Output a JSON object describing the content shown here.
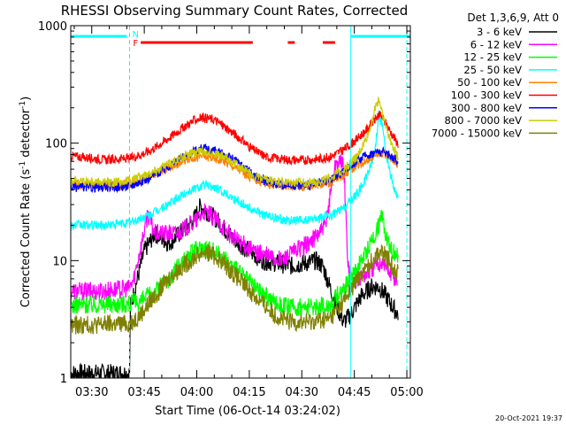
{
  "chart_data": {
    "type": "line",
    "title": "RHESSI Observing Summary Count Rates, Corrected",
    "xlabel": "Start Time (06-Oct-14 03:24:02)",
    "ylabel_main": "Corrected Count Rate (s",
    "ylabel_sup1": "-1",
    "ylabel_mid": " detector",
    "ylabel_sup2": "-1",
    "ylabel_end": ")",
    "yscale": "log",
    "ylim": [
      1,
      1000
    ],
    "xlim_minutes": [
      0,
      97
    ],
    "y_ticks": [
      {
        "value": 1,
        "label": "1"
      },
      {
        "value": 10,
        "label": "10"
      },
      {
        "value": 100,
        "label": "100"
      },
      {
        "value": 1000,
        "label": "1000"
      }
    ],
    "x_ticks": [
      {
        "minute": 6,
        "label": "03:30"
      },
      {
        "minute": 21,
        "label": "03:45"
      },
      {
        "minute": 36,
        "label": "04:00"
      },
      {
        "minute": 51,
        "label": "04:15"
      },
      {
        "minute": 66,
        "label": "04:30"
      },
      {
        "minute": 81,
        "label": "04:45"
      },
      {
        "minute": 96,
        "label": "05:00"
      }
    ],
    "legend_title": "Det 1,3,6,9, Att 0",
    "legend_placement": "right",
    "timestamp": "20-Oct-2021 19:37",
    "markers": {
      "night_label": "N",
      "flare_label": "F",
      "night_color": "#00ffff",
      "flare_color": "#ff0000",
      "night_intervals_min": [
        [
          0,
          16
        ],
        [
          80,
          97
        ]
      ],
      "flare_intervals_min": [
        [
          20,
          52
        ],
        [
          62,
          64
        ],
        [
          72,
          75.5
        ]
      ],
      "boundaries_min": [
        16.8,
        80,
        96
      ]
    },
    "series": [
      {
        "name": "3 - 6 keV",
        "color": "#000000",
        "points": [
          [
            0,
            1.1
          ],
          [
            16.8,
            1.1
          ],
          [
            17,
            4
          ],
          [
            21,
            12
          ],
          [
            24,
            17
          ],
          [
            28,
            14
          ],
          [
            32,
            18
          ],
          [
            35,
            22
          ],
          [
            37,
            29
          ],
          [
            39,
            26
          ],
          [
            42,
            22
          ],
          [
            45,
            17
          ],
          [
            48,
            14
          ],
          [
            51,
            12
          ],
          [
            55,
            10
          ],
          [
            59,
            9.5
          ],
          [
            63,
            9
          ],
          [
            67,
            9.5
          ],
          [
            70,
            10
          ],
          [
            72,
            9
          ],
          [
            74,
            6
          ],
          [
            76,
            4
          ],
          [
            78,
            3
          ],
          [
            80,
            3.5
          ],
          [
            83,
            5
          ],
          [
            86,
            6
          ],
          [
            88,
            6
          ],
          [
            90,
            5
          ],
          [
            92,
            4
          ],
          [
            93.5,
            3.5
          ]
        ]
      },
      {
        "name": "6 - 12 keV",
        "color": "#ff00ff",
        "points": [
          [
            0,
            5.5
          ],
          [
            8,
            5.5
          ],
          [
            16.8,
            5.8
          ],
          [
            18,
            7
          ],
          [
            20,
            13
          ],
          [
            22,
            25
          ],
          [
            24,
            17
          ],
          [
            27,
            17
          ],
          [
            30,
            17
          ],
          [
            33,
            19
          ],
          [
            36,
            22
          ],
          [
            38,
            26
          ],
          [
            40,
            24
          ],
          [
            43,
            20
          ],
          [
            46,
            16
          ],
          [
            49,
            14
          ],
          [
            52,
            12
          ],
          [
            56,
            11
          ],
          [
            60,
            10
          ],
          [
            64,
            12
          ],
          [
            68,
            14
          ],
          [
            70,
            16
          ],
          [
            73,
            20
          ],
          [
            74,
            35
          ],
          [
            75,
            55
          ],
          [
            76,
            70
          ],
          [
            78,
            65
          ],
          [
            79,
            12
          ],
          [
            80,
            6
          ],
          [
            82,
            7
          ],
          [
            85,
            8
          ],
          [
            87,
            9
          ],
          [
            89,
            10
          ],
          [
            91,
            8
          ],
          [
            93,
            7
          ],
          [
            93.5,
            6.5
          ]
        ]
      },
      {
        "name": "12 - 25 keV",
        "color": "#00ff00",
        "points": [
          [
            0,
            4.2
          ],
          [
            16.8,
            4.3
          ],
          [
            20,
            4.5
          ],
          [
            24,
            5.5
          ],
          [
            28,
            7
          ],
          [
            32,
            10
          ],
          [
            36,
            12.5
          ],
          [
            38,
            13
          ],
          [
            40,
            12.5
          ],
          [
            43,
            11
          ],
          [
            46,
            9
          ],
          [
            50,
            7
          ],
          [
            54,
            5.5
          ],
          [
            58,
            4.5
          ],
          [
            62,
            4
          ],
          [
            68,
            4
          ],
          [
            74,
            4.2
          ],
          [
            80,
            7
          ],
          [
            84,
            11
          ],
          [
            86,
            15
          ],
          [
            88,
            20
          ],
          [
            89,
            24
          ],
          [
            90,
            17
          ],
          [
            92,
            12
          ],
          [
            93.5,
            11
          ]
        ]
      },
      {
        "name": "25 - 50 keV",
        "color": "#00ffff",
        "points": [
          [
            0,
            20
          ],
          [
            10,
            20
          ],
          [
            16.8,
            21
          ],
          [
            22,
            24
          ],
          [
            26,
            28
          ],
          [
            30,
            33
          ],
          [
            33,
            38
          ],
          [
            36,
            42
          ],
          [
            38,
            44
          ],
          [
            41,
            42
          ],
          [
            44,
            38
          ],
          [
            48,
            32
          ],
          [
            52,
            27
          ],
          [
            56,
            24
          ],
          [
            62,
            22
          ],
          [
            68,
            22
          ],
          [
            74,
            24
          ],
          [
            78,
            28
          ],
          [
            82,
            38
          ],
          [
            85,
            55
          ],
          [
            87,
            90
          ],
          [
            88,
            180
          ],
          [
            89,
            140
          ],
          [
            90,
            80
          ],
          [
            92,
            45
          ],
          [
            93.5,
            33
          ]
        ]
      },
      {
        "name": "50 - 100 keV",
        "color": "#ff8000",
        "points": [
          [
            0,
            45
          ],
          [
            10,
            44
          ],
          [
            16.8,
            45
          ],
          [
            22,
            50
          ],
          [
            26,
            58
          ],
          [
            30,
            66
          ],
          [
            34,
            74
          ],
          [
            37,
            78
          ],
          [
            40,
            76
          ],
          [
            44,
            70
          ],
          [
            48,
            60
          ],
          [
            52,
            50
          ],
          [
            56,
            45
          ],
          [
            62,
            43
          ],
          [
            68,
            43
          ],
          [
            74,
            46
          ],
          [
            78,
            54
          ],
          [
            82,
            66
          ],
          [
            86,
            76
          ],
          [
            88,
            82
          ],
          [
            90,
            80
          ],
          [
            92,
            72
          ],
          [
            93.5,
            65
          ]
        ]
      },
      {
        "name": "100 - 300 keV",
        "color": "#ff0000",
        "points": [
          [
            0,
            78
          ],
          [
            10,
            72
          ],
          [
            16.8,
            74
          ],
          [
            22,
            84
          ],
          [
            26,
            100
          ],
          [
            30,
            122
          ],
          [
            33,
            142
          ],
          [
            36,
            160
          ],
          [
            38,
            166
          ],
          [
            41,
            158
          ],
          [
            44,
            138
          ],
          [
            48,
            112
          ],
          [
            52,
            88
          ],
          [
            56,
            76
          ],
          [
            62,
            72
          ],
          [
            68,
            72
          ],
          [
            74,
            76
          ],
          [
            78,
            88
          ],
          [
            82,
            110
          ],
          [
            85,
            135
          ],
          [
            87,
            160
          ],
          [
            88,
            175
          ],
          [
            89,
            165
          ],
          [
            91,
            130
          ],
          [
            93.5,
            98
          ]
        ]
      },
      {
        "name": "300 - 800 keV",
        "color": "#0000ff",
        "points": [
          [
            0,
            42
          ],
          [
            10,
            42
          ],
          [
            16.8,
            43
          ],
          [
            22,
            50
          ],
          [
            26,
            58
          ],
          [
            30,
            70
          ],
          [
            34,
            82
          ],
          [
            37,
            90
          ],
          [
            40,
            88
          ],
          [
            44,
            80
          ],
          [
            48,
            68
          ],
          [
            52,
            54
          ],
          [
            56,
            47
          ],
          [
            62,
            44
          ],
          [
            68,
            44
          ],
          [
            74,
            48
          ],
          [
            78,
            58
          ],
          [
            82,
            72
          ],
          [
            86,
            82
          ],
          [
            88,
            85
          ],
          [
            90,
            83
          ],
          [
            92,
            76
          ],
          [
            93.5,
            70
          ]
        ]
      },
      {
        "name": "800 - 7000 keV",
        "color": "#cccc00",
        "points": [
          [
            0,
            48
          ],
          [
            10,
            46
          ],
          [
            16.8,
            48
          ],
          [
            22,
            55
          ],
          [
            26,
            62
          ],
          [
            30,
            72
          ],
          [
            34,
            80
          ],
          [
            37,
            86
          ],
          [
            40,
            84
          ],
          [
            44,
            76
          ],
          [
            48,
            64
          ],
          [
            52,
            53
          ],
          [
            56,
            48
          ],
          [
            62,
            46
          ],
          [
            68,
            46
          ],
          [
            74,
            50
          ],
          [
            78,
            60
          ],
          [
            82,
            78
          ],
          [
            85,
            120
          ],
          [
            87,
            200
          ],
          [
            88,
            240
          ],
          [
            89,
            180
          ],
          [
            91,
            110
          ],
          [
            93.5,
            75
          ]
        ]
      },
      {
        "name": "7000 - 15000 keV",
        "color": "#808000",
        "points": [
          [
            0,
            2.8
          ],
          [
            16.8,
            2.9
          ],
          [
            20,
            3.5
          ],
          [
            24,
            5
          ],
          [
            28,
            7
          ],
          [
            32,
            9
          ],
          [
            36,
            11
          ],
          [
            38,
            12
          ],
          [
            40,
            11.5
          ],
          [
            43,
            10
          ],
          [
            46,
            8
          ],
          [
            50,
            6
          ],
          [
            54,
            4.5
          ],
          [
            58,
            3.5
          ],
          [
            62,
            3
          ],
          [
            68,
            3
          ],
          [
            74,
            3.2
          ],
          [
            78,
            4.5
          ],
          [
            82,
            7
          ],
          [
            85,
            9
          ],
          [
            88,
            12
          ],
          [
            90,
            11
          ],
          [
            92,
            9
          ],
          [
            93.5,
            8
          ]
        ]
      }
    ]
  }
}
